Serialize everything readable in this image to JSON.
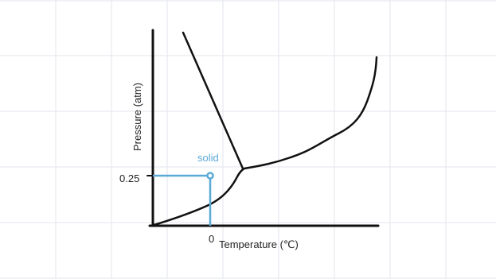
{
  "axis_labels": {
    "y": "Pressure (atm)",
    "x": "Temperature (℃)"
  },
  "ticks": {
    "y": "0.25",
    "x": "0"
  },
  "annotation": "solid"
}
